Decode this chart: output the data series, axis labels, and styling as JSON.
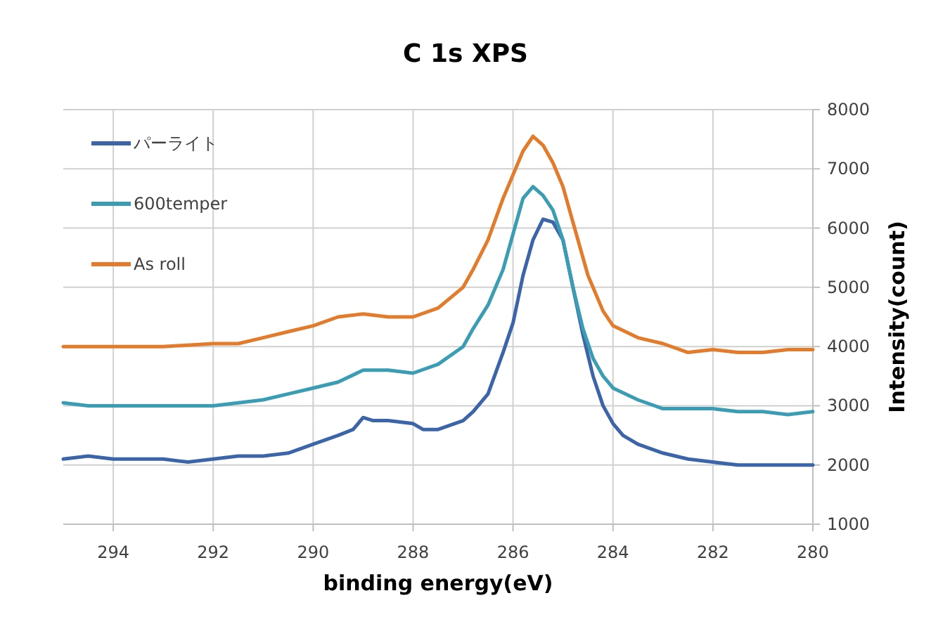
{
  "chart_data": {
    "type": "line",
    "title": "C 1s XPS",
    "xlabel": "binding energy(eV)",
    "ylabel": "Intensity(count)",
    "xlim": [
      295,
      280
    ],
    "ylim": [
      1000,
      8000
    ],
    "xticks": [
      294,
      292,
      290,
      288,
      286,
      284,
      282,
      280
    ],
    "yticks": [
      1000,
      2000,
      3000,
      4000,
      5000,
      6000,
      7000,
      8000
    ],
    "grid": true,
    "legend": "top left",
    "series": [
      {
        "name": "パーライト",
        "color": "#3c64a8",
        "x": [
          295,
          294.5,
          294,
          293,
          292.5,
          292,
          291.5,
          291,
          290.5,
          290,
          289.5,
          289.2,
          289,
          288.8,
          288.5,
          288,
          287.8,
          287.5,
          287,
          286.8,
          286.5,
          286.2,
          286,
          285.8,
          285.6,
          285.4,
          285.2,
          285,
          284.8,
          284.6,
          284.4,
          284.2,
          284,
          283.8,
          283.5,
          283,
          282.5,
          282,
          281.5,
          281,
          280.5,
          280
        ],
        "values": [
          2100,
          2150,
          2100,
          2100,
          2050,
          2100,
          2150,
          2150,
          2200,
          2350,
          2500,
          2600,
          2800,
          2750,
          2750,
          2700,
          2600,
          2600,
          2750,
          2900,
          3200,
          3900,
          4400,
          5200,
          5800,
          6150,
          6100,
          5800,
          5000,
          4200,
          3500,
          3000,
          2700,
          2500,
          2350,
          2200,
          2100,
          2050,
          2000,
          2000,
          2000,
          2000
        ]
      },
      {
        "name": "600temper",
        "color": "#3a9db3",
        "x": [
          295,
          294.5,
          294,
          293,
          292,
          291.5,
          291,
          290.5,
          290,
          289.5,
          289,
          288.5,
          288,
          287.5,
          287,
          286.8,
          286.5,
          286.2,
          286,
          285.8,
          285.6,
          285.4,
          285.2,
          285,
          284.8,
          284.6,
          284.4,
          284.2,
          284,
          283.5,
          283,
          282.5,
          282,
          281.5,
          281,
          280.5,
          280
        ],
        "values": [
          3050,
          3000,
          3000,
          3000,
          3000,
          3050,
          3100,
          3200,
          3300,
          3400,
          3600,
          3600,
          3550,
          3700,
          4000,
          4300,
          4700,
          5300,
          5900,
          6500,
          6700,
          6550,
          6300,
          5800,
          5000,
          4300,
          3800,
          3500,
          3300,
          3100,
          2950,
          2950,
          2950,
          2900,
          2900,
          2850,
          2900
        ]
      },
      {
        "name": "As roll",
        "color": "#e27c2c",
        "x": [
          295,
          294,
          293,
          292,
          291.5,
          291,
          290.5,
          290,
          289.5,
          289,
          288.5,
          288,
          287.5,
          287,
          286.8,
          286.5,
          286.2,
          286,
          285.8,
          285.6,
          285.4,
          285.2,
          285,
          284.8,
          284.5,
          284.2,
          284,
          283.5,
          283,
          282.5,
          282,
          281.5,
          281,
          280.5,
          280
        ],
        "values": [
          4000,
          4000,
          4000,
          4050,
          4050,
          4150,
          4250,
          4350,
          4500,
          4550,
          4500,
          4500,
          4650,
          5000,
          5300,
          5800,
          6500,
          6900,
          7300,
          7550,
          7400,
          7100,
          6700,
          6100,
          5200,
          4600,
          4350,
          4150,
          4050,
          3900,
          3950,
          3900,
          3900,
          3950,
          3950
        ]
      }
    ]
  }
}
